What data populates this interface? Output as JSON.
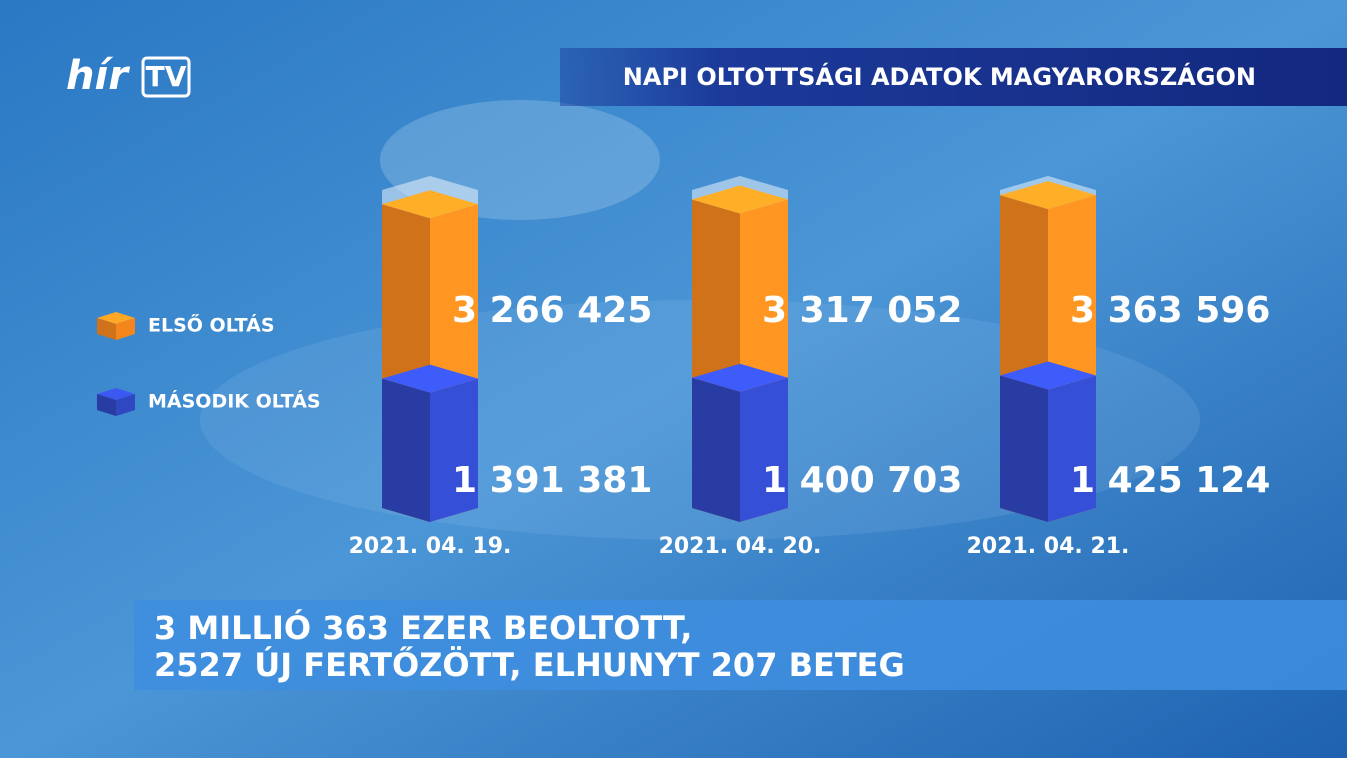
{
  "logo": [
    "hír",
    "TV"
  ],
  "caption": [
    "3 MILLIÓ 363 EZER BEOLTOTT,",
    "2527 ÚJ FERTŐZÖTT, ELHUNYT 207 BETEG"
  ],
  "chart_data": {
    "type": "bar",
    "title": "NAPI OLTOTTSÁGI ADATOK MAGYARORSZÁGON",
    "categories": [
      "2021. 04. 19.",
      "2021. 04. 20.",
      "2021. 04. 21."
    ],
    "series": [
      {
        "name": "ELSŐ OLTÁS",
        "color": "#f5861e",
        "values": [
          3266425,
          3317052,
          3363596
        ],
        "value_labels": [
          "3 266 425",
          "3 317 052",
          "3 363 596"
        ]
      },
      {
        "name": "MÁSODIK OLTÁS",
        "color": "#2f47c0",
        "values": [
          1391381,
          1400703,
          1425124
        ],
        "value_labels": [
          "1 391 381",
          "1 400 703",
          "1 425 124"
        ]
      }
    ]
  }
}
